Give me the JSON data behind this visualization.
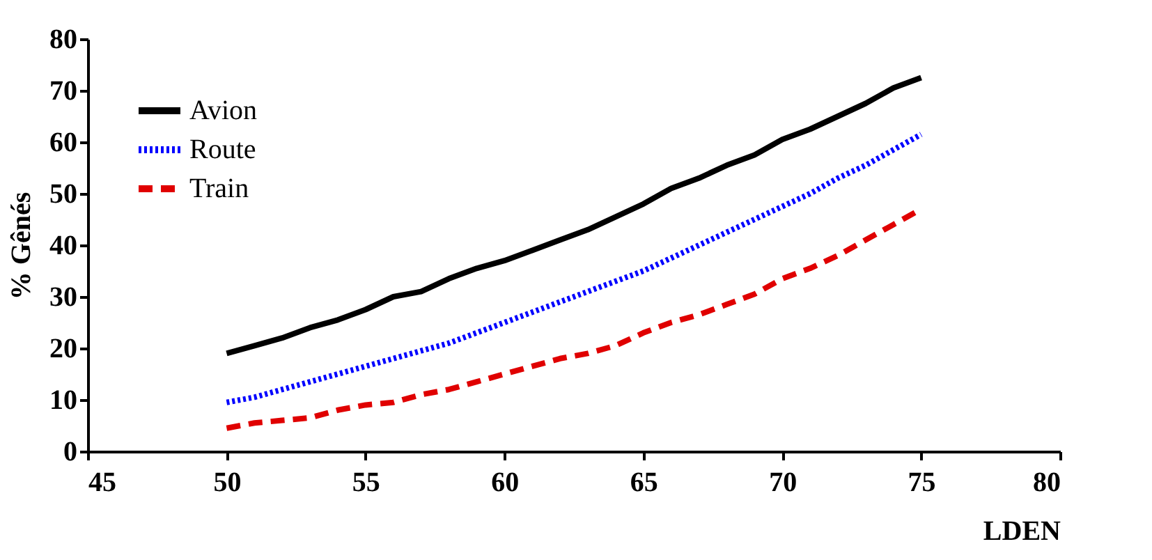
{
  "chart_data": {
    "type": "line",
    "xlabel": "LDEN",
    "ylabel": "% Gênés",
    "x": [
      50,
      51,
      52,
      53,
      54,
      55,
      56,
      57,
      58,
      59,
      60,
      61,
      62,
      63,
      64,
      65,
      66,
      67,
      68,
      69,
      70,
      71,
      72,
      73,
      74,
      75
    ],
    "series": [
      {
        "name": "Avion",
        "color": "#000000",
        "line_style": "solid",
        "values": [
          19,
          20.5,
          22,
          24,
          25.5,
          27.5,
          30,
          31,
          33.5,
          35.5,
          37,
          39,
          41,
          43,
          45.5,
          48,
          51,
          53,
          55.5,
          57.5,
          60.5,
          62.5,
          65,
          67.5,
          70.5,
          72.5
        ]
      },
      {
        "name": "Route",
        "color": "#0000ff",
        "line_style": "dotted",
        "values": [
          9.5,
          10.5,
          12,
          13.5,
          15,
          16.5,
          18,
          19.5,
          21,
          23,
          25,
          27,
          29,
          31,
          33,
          35,
          37.5,
          40,
          42.5,
          45,
          47.5,
          50,
          53,
          55.5,
          58.5,
          61.5
        ]
      },
      {
        "name": "Train",
        "color": "#e00000",
        "line_style": "dashed",
        "values": [
          4.5,
          5.5,
          6,
          6.5,
          8,
          9,
          9.5,
          11,
          12,
          13.5,
          15,
          16.5,
          18,
          19,
          20.5,
          23,
          25,
          26.5,
          28.5,
          30.5,
          33.5,
          35.5,
          38,
          41,
          44,
          47
        ]
      }
    ],
    "xlim": [
      45,
      80
    ],
    "xticks": [
      45,
      50,
      55,
      60,
      65,
      70,
      75,
      80
    ],
    "ylim": [
      0,
      80
    ],
    "yticks": [
      0,
      10,
      20,
      30,
      40,
      50,
      60,
      70,
      80
    ],
    "grid": false,
    "legend": "top left",
    "marker": "none"
  }
}
